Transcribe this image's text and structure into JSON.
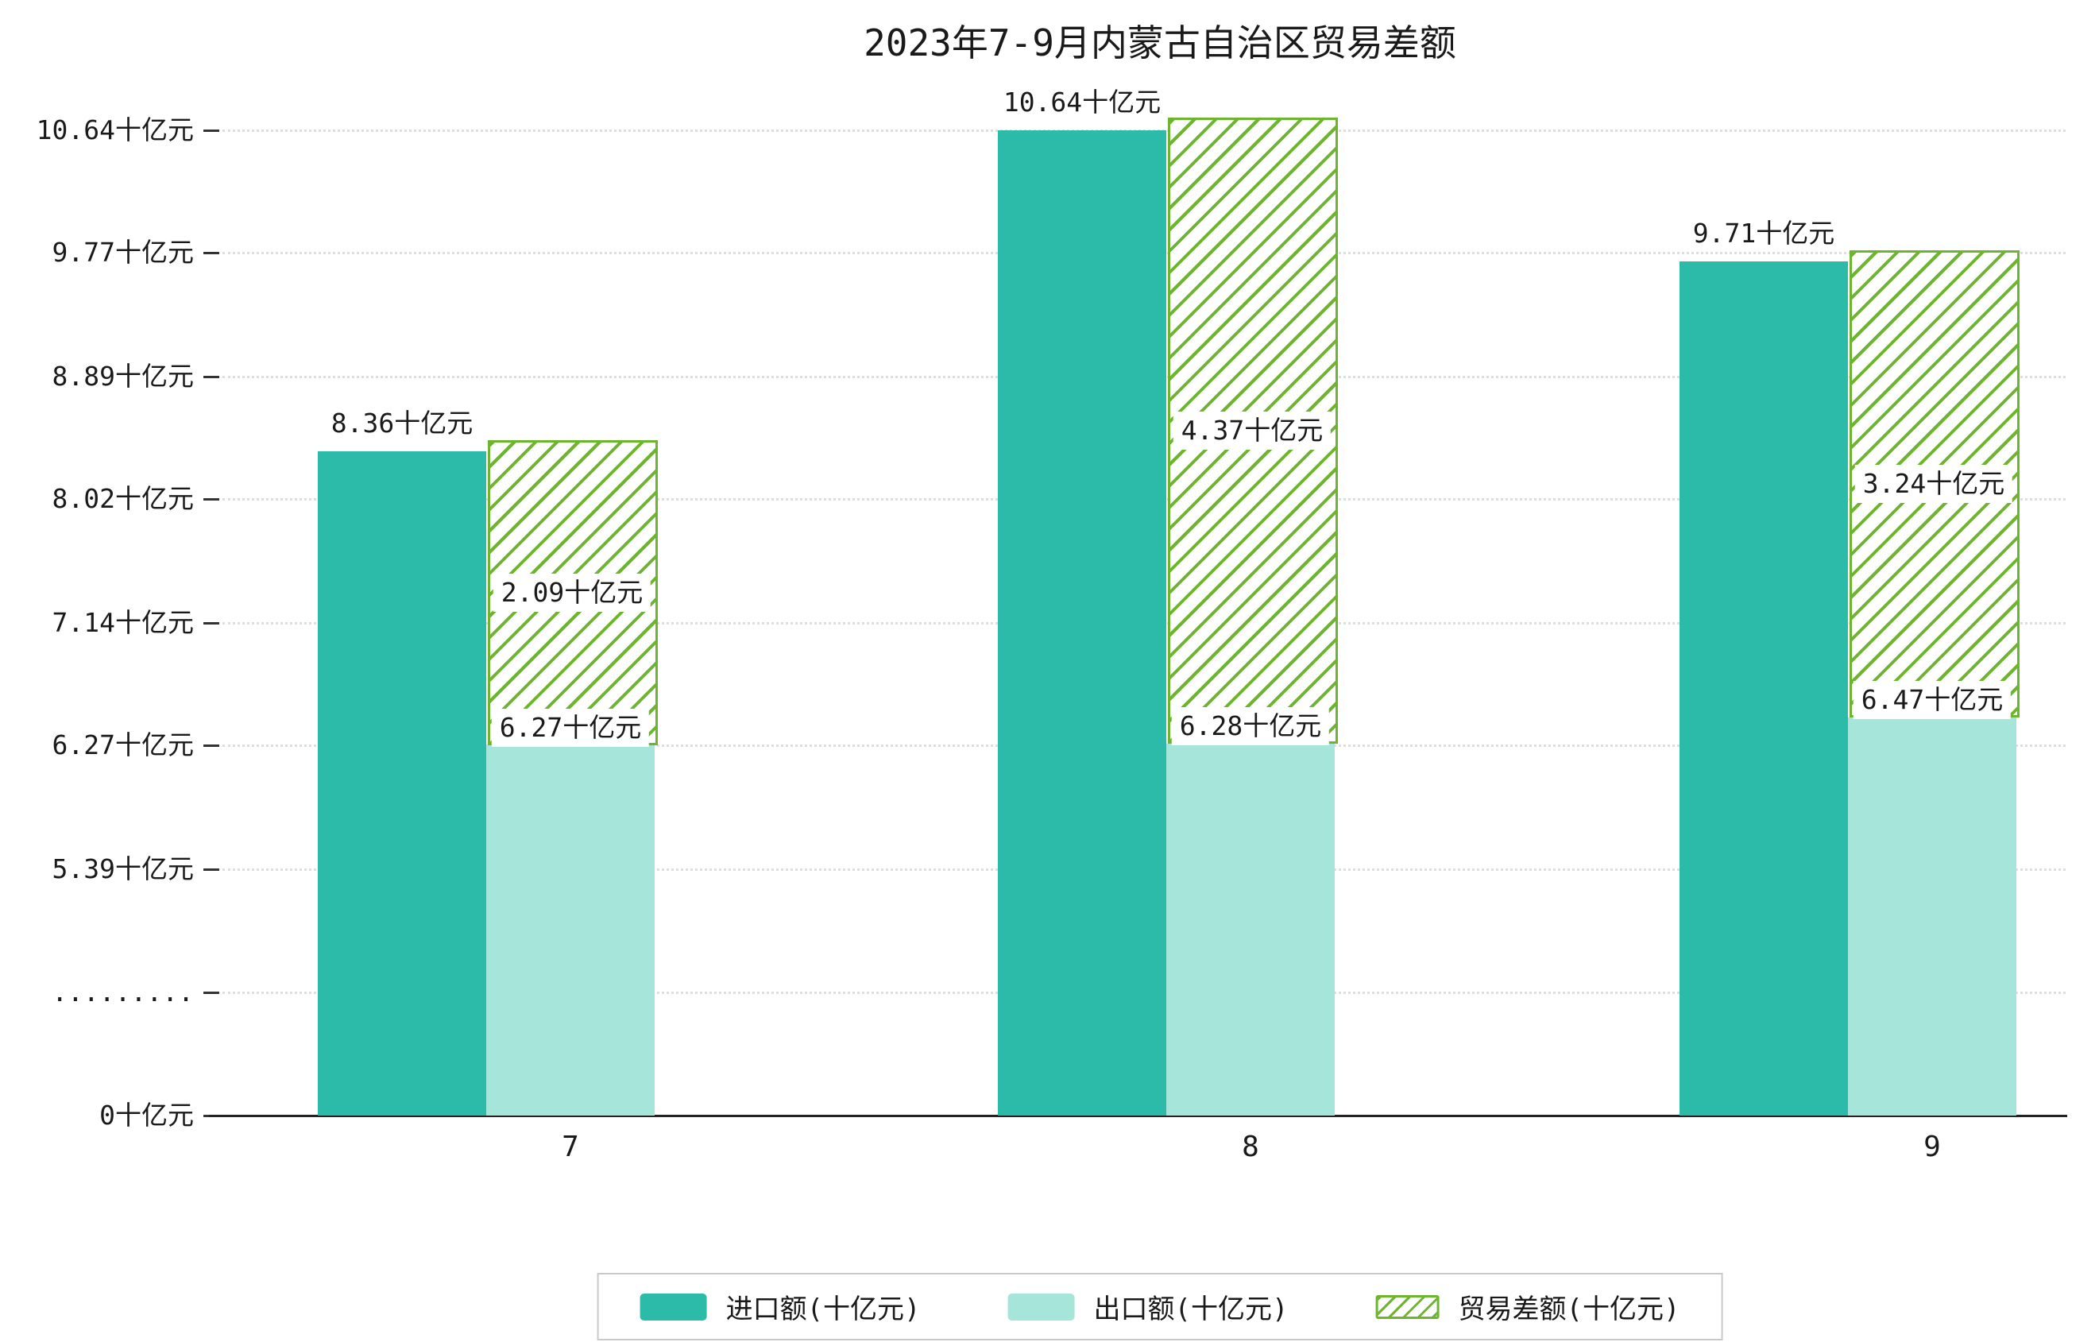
{
  "title": "2023年7-9月内蒙古自治区贸易差额",
  "chart_data": {
    "type": "bar",
    "title": "2023年7-9月内蒙古自治区贸易差额",
    "unit": "十亿元",
    "categories": [
      "7",
      "8",
      "9"
    ],
    "series": [
      {
        "name": "进口额(十亿元)",
        "type": "bar",
        "style": "solid",
        "color": "#2bbba8",
        "values": [
          8.36,
          10.64,
          9.71
        ]
      },
      {
        "name": "出口额(十亿元)",
        "type": "bar",
        "style": "solid",
        "color": "#a6e6da",
        "values": [
          6.27,
          6.28,
          6.47
        ]
      },
      {
        "name": "贸易差额(十亿元)",
        "type": "bar",
        "style": "hatched",
        "color": "#6eb52f",
        "values": [
          2.09,
          4.37,
          3.24
        ],
        "stacked_on": "出口额(十亿元)"
      }
    ],
    "bar_labels": {
      "import": [
        "8.36十亿元",
        "10.64十亿元",
        "9.71十亿元"
      ],
      "export": [
        "6.27十亿元",
        "6.28十亿元",
        "6.47十亿元"
      ],
      "diff": [
        "2.09十亿元",
        "4.37十亿元",
        "3.24十亿元"
      ]
    },
    "y_axis": {
      "ticks": [
        {
          "label": "10.64十亿元",
          "value": 10.64
        },
        {
          "label": "9.77十亿元",
          "value": 9.77
        },
        {
          "label": "8.89十亿元",
          "value": 8.89
        },
        {
          "label": "8.02十亿元",
          "value": 8.02
        },
        {
          "label": "7.14十亿元",
          "value": 7.14
        },
        {
          "label": "6.27十亿元",
          "value": 6.27
        },
        {
          "label": "5.39十亿元",
          "value": 5.39
        },
        {
          "label": ".........",
          "value": null,
          "axis_break": true
        },
        {
          "label": "0十亿元",
          "value": 0
        }
      ],
      "range_top": 10.64,
      "axis_break_between": [
        0,
        5.39
      ]
    },
    "x_axis": {
      "tick_labels": [
        "7",
        "8",
        "9"
      ]
    },
    "grid": "dotted-horizontal",
    "legend_position": "bottom-center"
  },
  "colors": {
    "import": "#2bbba8",
    "export": "#a6e6da",
    "trade_balance": "#6eb52f",
    "grid": "#dedede",
    "axis": "#222222",
    "background": "#ffffff"
  },
  "legend": {
    "items": [
      {
        "label": "进口额(十亿元)",
        "swatch": "solid-teal",
        "color": "#2bbba8"
      },
      {
        "label": "出口额(十亿元)",
        "swatch": "solid-light-teal",
        "color": "#a6e6da"
      },
      {
        "label": "贸易差额(十亿元)",
        "swatch": "hatched-green",
        "color": "#6eb52f"
      }
    ]
  }
}
